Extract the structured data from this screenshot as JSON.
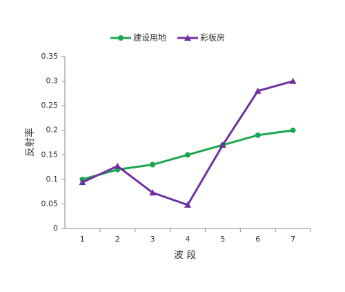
{
  "chart_data": {
    "type": "line",
    "x_label": "波 段",
    "y_label": "反射率",
    "categories": [
      "1",
      "2",
      "3",
      "4",
      "5",
      "6",
      "7"
    ],
    "series": [
      {
        "name": "建设用地",
        "color": "#1aa84f",
        "marker": "circle",
        "values": [
          0.1,
          0.12,
          0.13,
          0.15,
          0.17,
          0.19,
          0.2
        ]
      },
      {
        "name": "彩板房",
        "color": "#7030a0",
        "marker": "triangle",
        "values": [
          0.094,
          0.127,
          0.073,
          0.048,
          0.17,
          0.28,
          0.3
        ]
      }
    ],
    "ylim": [
      0,
      0.35
    ],
    "yticks": [
      0,
      0.05,
      0.1,
      0.15,
      0.2,
      0.25,
      0.3,
      0.35
    ],
    "grid": false,
    "legend": "top"
  }
}
